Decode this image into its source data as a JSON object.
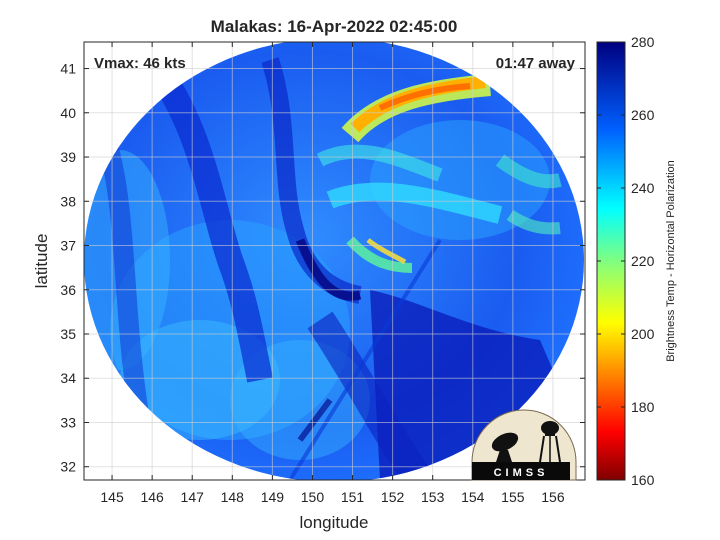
{
  "title": "Malakas: 16-Apr-2022 02:45:00",
  "annotations": {
    "vmax": "Vmax: 46 kts",
    "time_away": "01:47 away"
  },
  "axes": {
    "xlabel": "longitude",
    "ylabel": "latitude",
    "xlim": [
      144.3,
      156.8
    ],
    "ylim": [
      31.7,
      41.6
    ],
    "xticks": [
      "145",
      "146",
      "147",
      "148",
      "149",
      "150",
      "151",
      "152",
      "153",
      "154",
      "155",
      "156"
    ],
    "yticks": [
      "32",
      "33",
      "34",
      "35",
      "36",
      "37",
      "38",
      "39",
      "40",
      "41"
    ],
    "grid": true
  },
  "colorbar": {
    "label": "Brightness Temp - Horizontal Polarization",
    "range": [
      160,
      280
    ],
    "ticks": [
      "160",
      "180",
      "200",
      "220",
      "240",
      "260",
      "280"
    ],
    "colormap": "jet",
    "placement": "right"
  },
  "logo": {
    "text": "CIMSS",
    "placement": "bottom-right"
  },
  "colors": {
    "cold_core": "#0000b0",
    "background_blue": "#1a5cff",
    "band_warm": "#ff8c00"
  }
}
